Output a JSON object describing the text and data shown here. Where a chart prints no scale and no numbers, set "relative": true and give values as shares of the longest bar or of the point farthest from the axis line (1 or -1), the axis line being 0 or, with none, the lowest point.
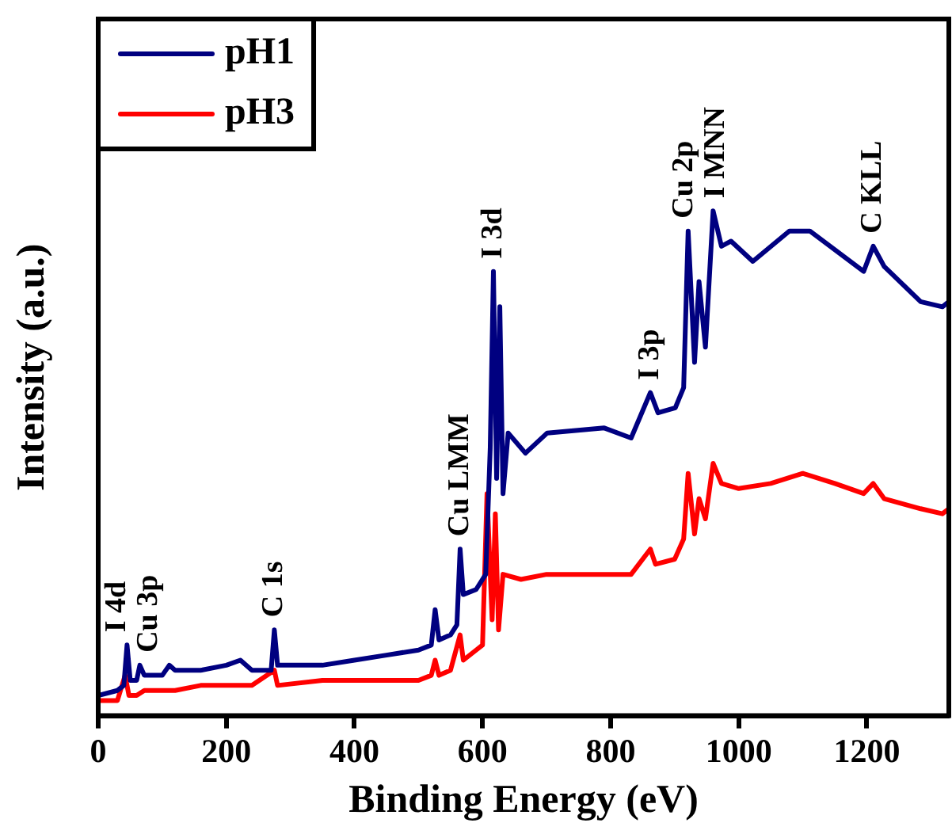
{
  "chart_data": {
    "type": "line",
    "xlabel": "Binding Energy (eV)",
    "ylabel": "Intensity (a.u.)",
    "relative": true,
    "xlim": [
      0,
      1328
    ],
    "xticks": [
      0,
      200,
      400,
      600,
      800,
      1000,
      1200
    ],
    "grid": false,
    "legend": "top left",
    "marker": "none",
    "line_style": "solid",
    "series": [
      {
        "name": "pH1",
        "color": "#000080",
        "x": [
          0,
          30,
          40,
          45,
          50,
          60,
          65,
          72,
          100,
          111,
          120,
          160,
          200,
          222,
          240,
          270,
          275,
          280,
          350,
          400,
          450,
          500,
          520,
          526,
          532,
          550,
          560,
          565,
          570,
          590,
          605,
          612,
          617,
          622,
          627,
          632,
          640,
          667,
          701,
          790,
          832,
          862,
          874,
          901,
          914,
          921,
          931,
          938,
          948,
          960,
          973,
          988,
          1022,
          1079,
          1111,
          1195,
          1210,
          1227,
          1284,
          1318,
          1328
        ],
        "values": [
          0.04,
          0.05,
          0.06,
          0.14,
          0.07,
          0.07,
          0.1,
          0.08,
          0.08,
          0.1,
          0.09,
          0.09,
          0.1,
          0.11,
          0.09,
          0.09,
          0.17,
          0.1,
          0.1,
          0.11,
          0.12,
          0.13,
          0.14,
          0.21,
          0.15,
          0.16,
          0.18,
          0.33,
          0.24,
          0.25,
          0.28,
          0.53,
          0.88,
          0.47,
          0.81,
          0.44,
          0.56,
          0.52,
          0.56,
          0.57,
          0.55,
          0.64,
          0.6,
          0.61,
          0.65,
          0.96,
          0.7,
          0.86,
          0.73,
          1,
          0.93,
          0.94,
          0.9,
          0.96,
          0.96,
          0.88,
          0.93,
          0.89,
          0.82,
          0.81,
          0.82
        ]
      },
      {
        "name": "pH3",
        "color": "#ff0000",
        "x": [
          0,
          30,
          42,
          48,
          60,
          72,
          100,
          120,
          160,
          200,
          240,
          275,
          280,
          350,
          400,
          450,
          500,
          520,
          526,
          532,
          550,
          565,
          570,
          590,
          600,
          607,
          615,
          620,
          625,
          632,
          660,
          700,
          790,
          832,
          862,
          870,
          900,
          914,
          921,
          931,
          938,
          948,
          960,
          973,
          1000,
          1050,
          1100,
          1150,
          1195,
          1210,
          1227,
          1284,
          1318,
          1328
        ],
        "values": [
          0.03,
          0.03,
          0.08,
          0.04,
          0.04,
          0.05,
          0.05,
          0.05,
          0.06,
          0.06,
          0.06,
          0.09,
          0.06,
          0.07,
          0.07,
          0.07,
          0.07,
          0.08,
          0.11,
          0.08,
          0.09,
          0.16,
          0.11,
          0.13,
          0.14,
          0.44,
          0.19,
          0.4,
          0.17,
          0.28,
          0.27,
          0.28,
          0.28,
          0.28,
          0.33,
          0.3,
          0.31,
          0.35,
          0.48,
          0.36,
          0.43,
          0.39,
          0.5,
          0.46,
          0.45,
          0.46,
          0.48,
          0.46,
          0.44,
          0.46,
          0.43,
          0.41,
          0.4,
          0.41
        ]
      }
    ],
    "annotations": [
      {
        "text": "I 4d",
        "x": 45,
        "y": 0.14
      },
      {
        "text": "Cu 3p",
        "x": 65,
        "y": 0.1
      },
      {
        "text": "C 1s",
        "x": 275,
        "y": 0.17
      },
      {
        "text": "Cu LMM",
        "x": 565,
        "y": 0.33
      },
      {
        "text": "I 3d",
        "x": 617,
        "y": 0.88
      },
      {
        "text": "I 3p",
        "x": 862,
        "y": 0.64
      },
      {
        "text": "Cu 2p",
        "x": 921,
        "y": 0.96
      },
      {
        "text": "I MNN",
        "x": 960,
        "y": 1
      },
      {
        "text": "C KLL",
        "x": 1210,
        "y": 0.93
      }
    ]
  }
}
